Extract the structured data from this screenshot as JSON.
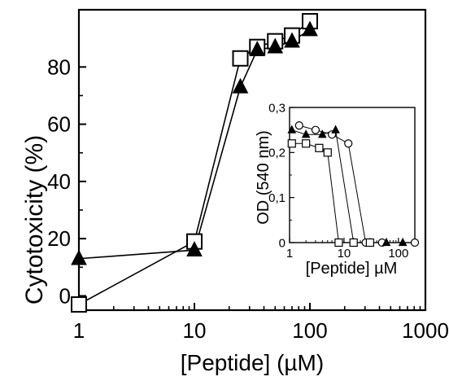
{
  "chart_data": [
    {
      "type": "line",
      "xlabel": "[Peptide] (µM)",
      "ylabel": "Cytotoxicity (%)",
      "xscale": "log",
      "xlim": [
        1,
        1000
      ],
      "ylim": [
        -5,
        100
      ],
      "x_ticks": [
        "1",
        "10",
        "100",
        "1000"
      ],
      "y_ticks": [
        "0",
        "20",
        "40",
        "60",
        "80"
      ],
      "grid": false,
      "legend": "none",
      "series": [
        {
          "marker": "open-square",
          "x": [
            1,
            10,
            25,
            35,
            50,
            70,
            100
          ],
          "y": [
            -3,
            19,
            83,
            87,
            89,
            91,
            96
          ]
        },
        {
          "marker": "filled-triangle",
          "x": [
            1,
            10,
            25,
            35,
            50,
            70,
            100
          ],
          "y": [
            13,
            16,
            73,
            86,
            87,
            89,
            93
          ]
        }
      ]
    },
    {
      "type": "line",
      "xlabel": "[Peptide] µM",
      "ylabel": "OD (540 nm)",
      "xscale": "log",
      "xlim": [
        1,
        200
      ],
      "ylim": [
        0,
        0.3
      ],
      "x_ticks": [
        "1",
        "10",
        "100"
      ],
      "y_ticks": [
        "0",
        "0,1",
        "0,2",
        "0,3"
      ],
      "grid": false,
      "legend": "none",
      "series": [
        {
          "marker": "open-circle",
          "x": [
            1.5,
            3,
            6,
            12,
            25,
            50,
            200
          ],
          "y": [
            0.26,
            0.25,
            0.24,
            0.22,
            0,
            0,
            0
          ]
        },
        {
          "marker": "filled-triangle",
          "x": [
            1.1,
            2,
            4,
            7,
            15,
            30,
            60,
            120
          ],
          "y": [
            0.25,
            0.24,
            0.24,
            0.25,
            0,
            0,
            0,
            0
          ]
        },
        {
          "marker": "open-square",
          "x": [
            1.1,
            2,
            3.5,
            5,
            8,
            15,
            30
          ],
          "y": [
            0.22,
            0.22,
            0.21,
            0.2,
            0,
            0,
            0
          ]
        }
      ]
    }
  ]
}
